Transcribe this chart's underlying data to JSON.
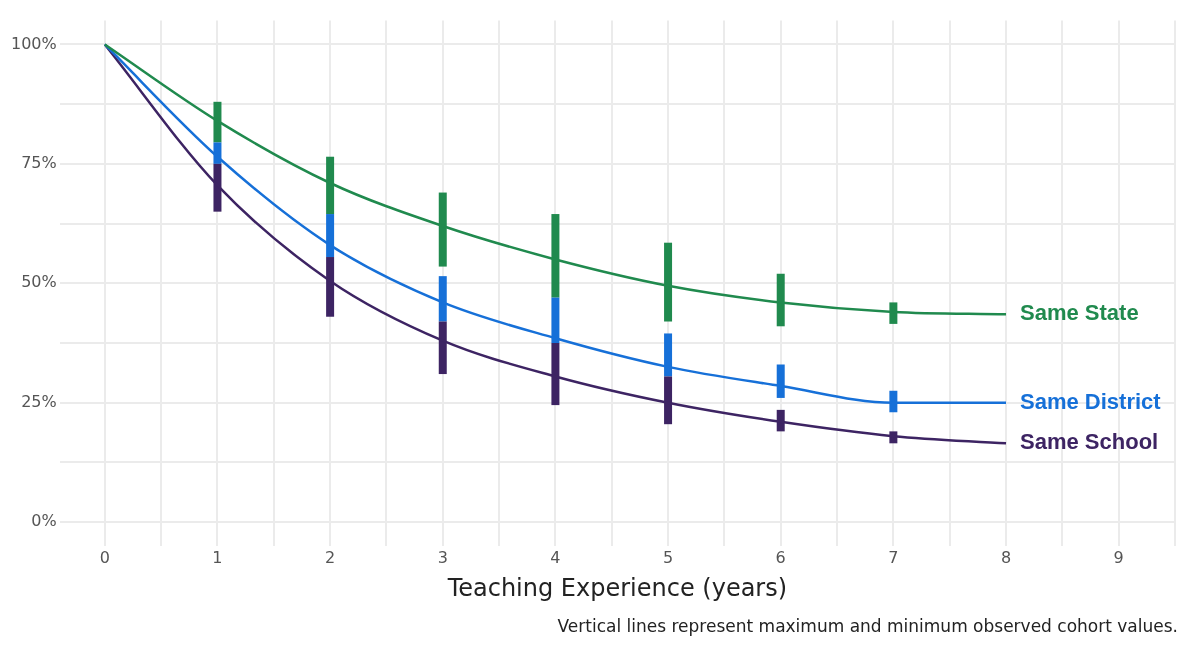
{
  "chart_data": {
    "type": "line",
    "xlabel": "Teaching Experience (years)",
    "x": [
      0,
      1,
      2,
      3,
      4,
      5,
      6,
      7,
      8
    ],
    "series": [
      {
        "name": "Same State",
        "color": "#208a4e",
        "values": [
          100,
          84,
          71,
          62,
          55,
          49.5,
          46,
          44,
          43.5
        ],
        "errors": [
          null,
          [
            79.5,
            88
          ],
          [
            64.5,
            76.5
          ],
          [
            53.5,
            69
          ],
          [
            47,
            64.5
          ],
          [
            42,
            58.5
          ],
          [
            41,
            52
          ],
          [
            41.5,
            46
          ],
          null
        ]
      },
      {
        "name": "Same District",
        "color": "#1670d8",
        "values": [
          100,
          76.5,
          58,
          46,
          38.5,
          32.5,
          28.5,
          25,
          25
        ],
        "errors": [
          null,
          [
            75,
            79.5
          ],
          [
            55.5,
            64.5
          ],
          [
            42,
            51.5
          ],
          [
            37.5,
            47
          ],
          [
            30.5,
            39.5
          ],
          [
            26,
            33
          ],
          [
            23,
            27.5
          ],
          null
        ]
      },
      {
        "name": "Same School",
        "color": "#3d2463",
        "values": [
          100,
          70.5,
          50.5,
          38,
          30.5,
          25,
          21,
          18,
          16.5
        ],
        "errors": [
          null,
          [
            65,
            75
          ],
          [
            43,
            55.5
          ],
          [
            31,
            42
          ],
          [
            24.5,
            37.5
          ],
          [
            20.5,
            30.5
          ],
          [
            19,
            23.5
          ],
          [
            16.5,
            19
          ],
          null
        ]
      }
    ],
    "xlim": [
      -0.4,
      9.5
    ],
    "ylim": [
      -5,
      105
    ],
    "xticks": [
      0,
      {
        "value": 0.5,
        "label": null
      },
      1,
      {
        "value": 1.5,
        "label": null
      },
      2,
      {
        "value": 2.5,
        "label": null
      },
      3,
      {
        "value": 3.5,
        "label": null
      },
      4,
      {
        "value": 4.5,
        "label": null
      },
      5,
      {
        "value": 5.5,
        "label": null
      },
      6,
      {
        "value": 6.5,
        "label": null
      },
      7,
      {
        "value": 7.5,
        "label": null
      },
      8,
      {
        "value": 8.5,
        "label": null
      },
      9,
      {
        "value": 9.5,
        "label": null
      }
    ],
    "yticks": [
      {
        "value": 0,
        "label": "0%"
      },
      {
        "value": 12.5,
        "label": null
      },
      {
        "value": 25,
        "label": "25%"
      },
      {
        "value": 37.5,
        "label": null
      },
      {
        "value": 50,
        "label": "50%"
      },
      {
        "value": 62.5,
        "label": null
      },
      {
        "value": 75,
        "label": "75%"
      },
      {
        "value": 87.5,
        "label": null
      },
      {
        "value": 100,
        "label": "100%"
      }
    ],
    "grid": true,
    "legend": false,
    "marker": "none",
    "line_style": "solid",
    "annotations": [
      "Vertical lines represent maximum and minimum observed cohort values."
    ]
  }
}
